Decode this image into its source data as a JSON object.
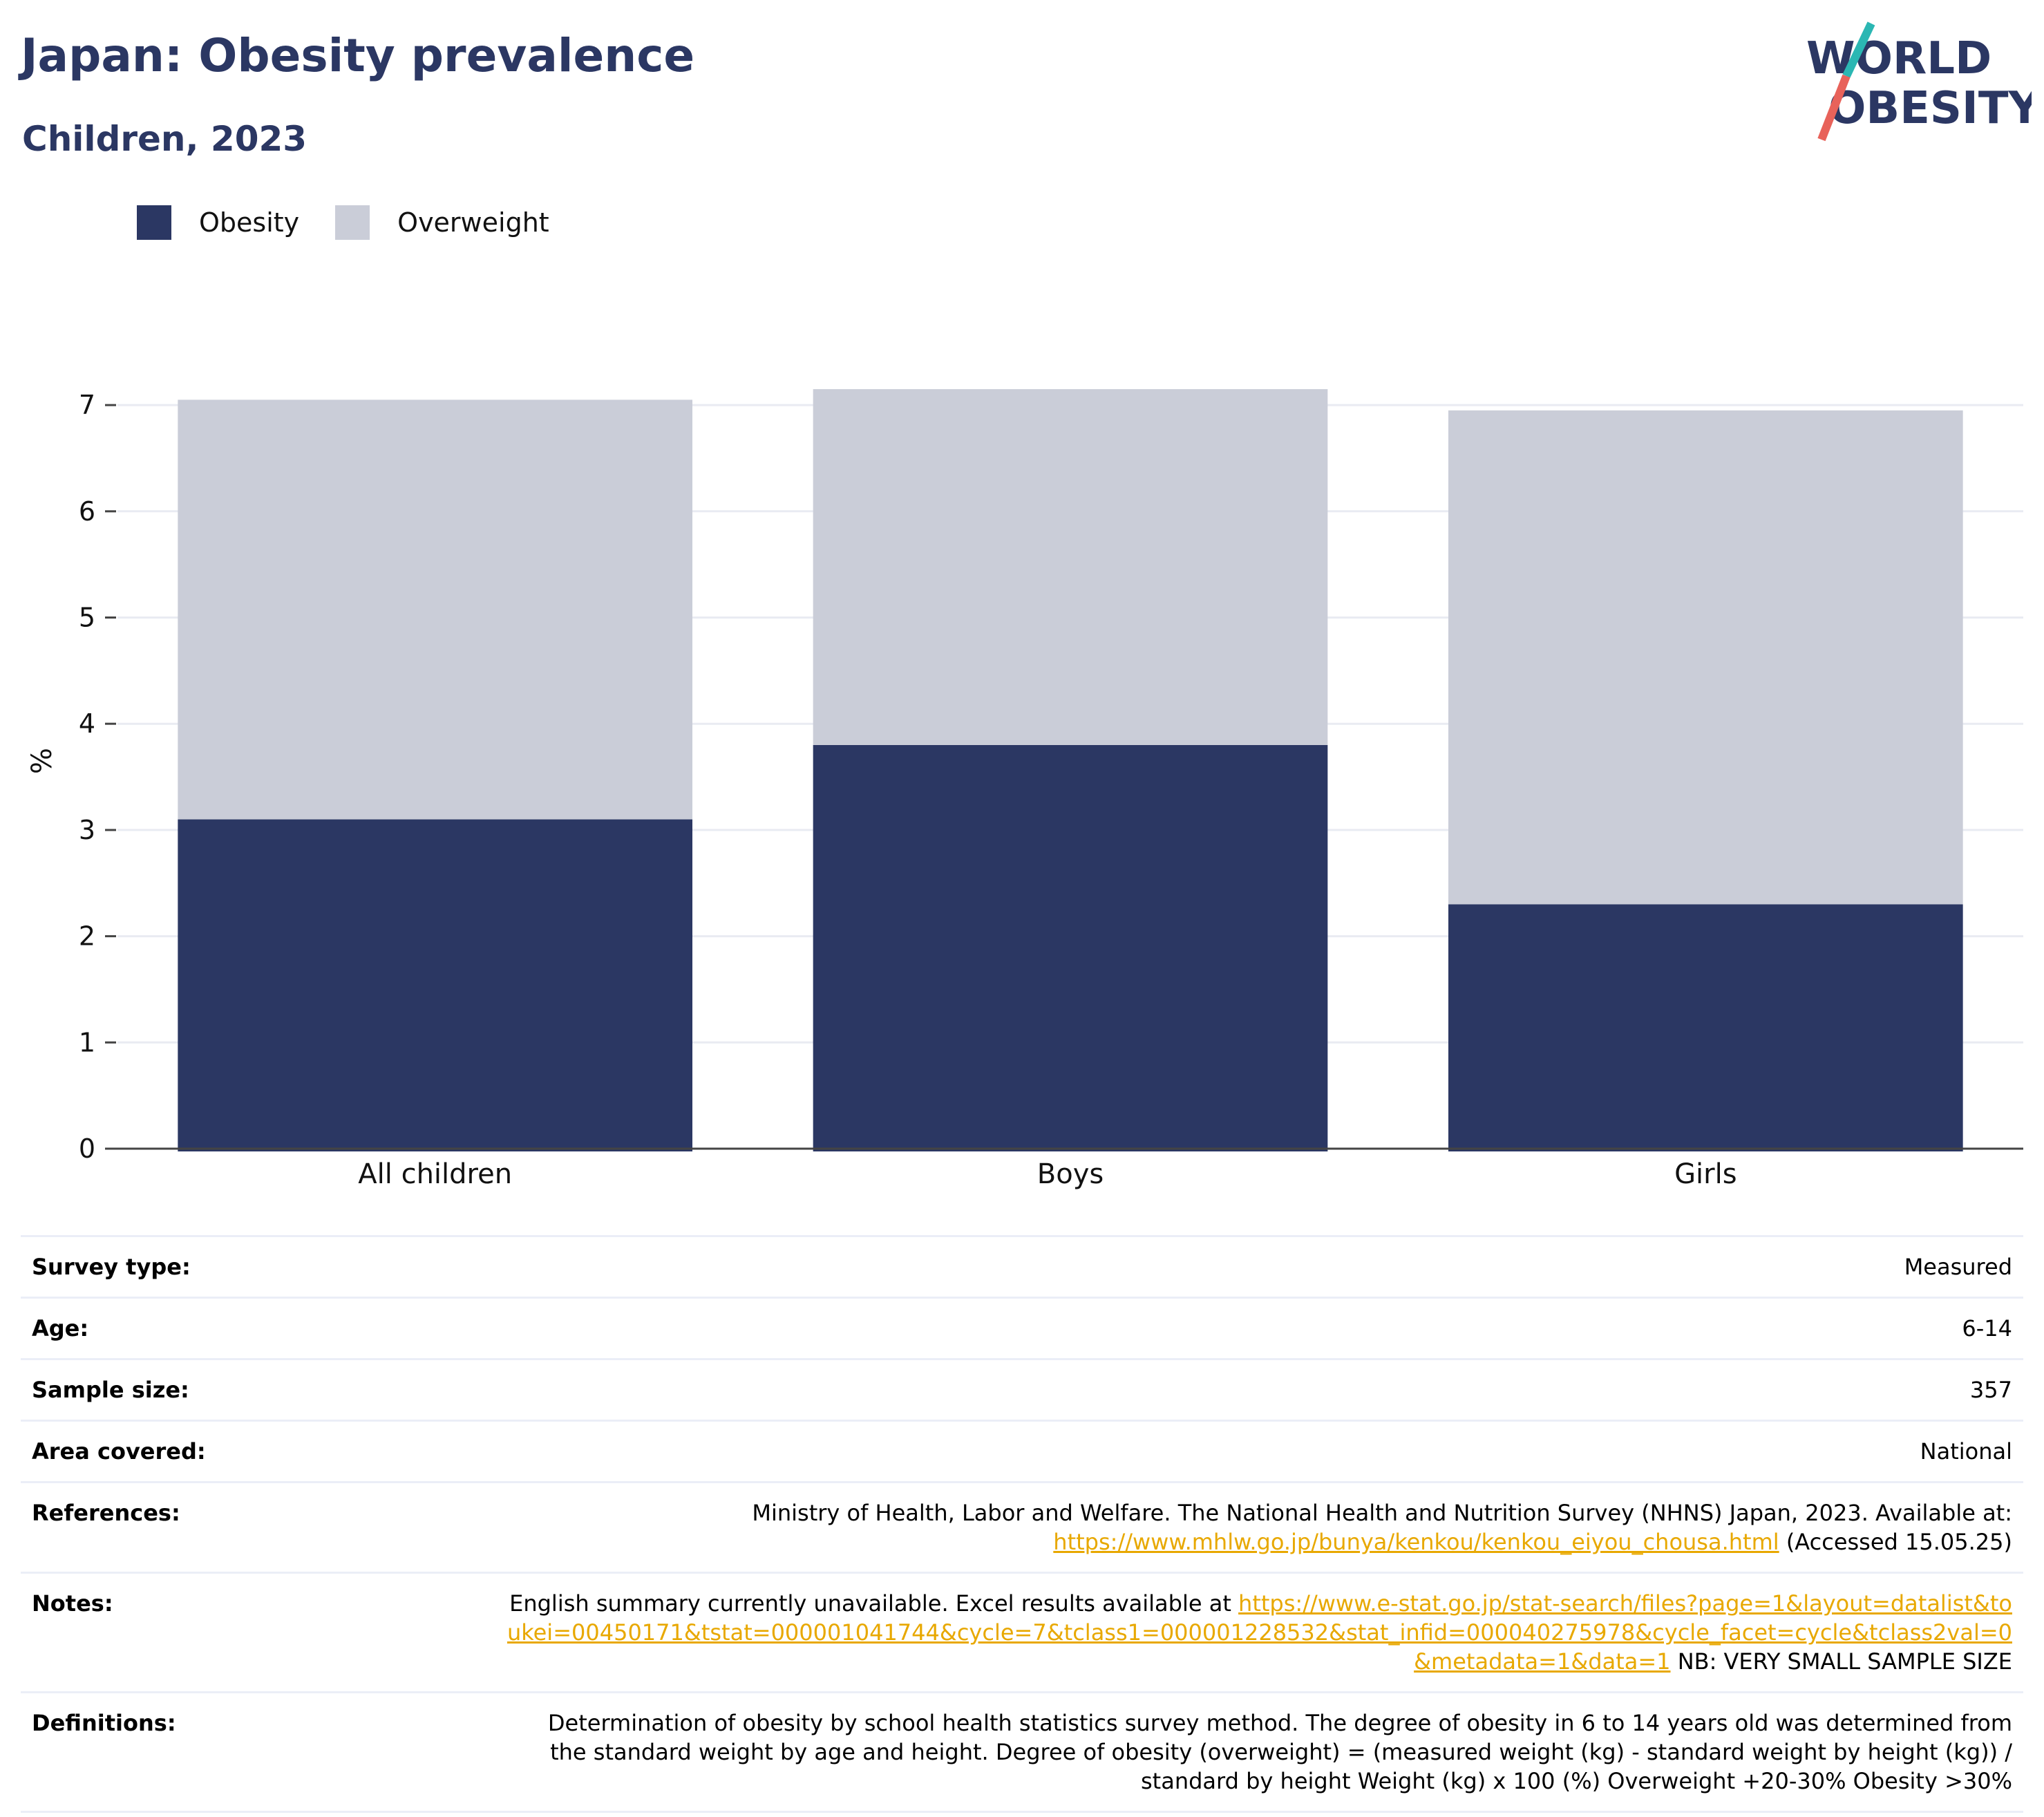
{
  "header": {
    "title": "Japan: Obesity prevalence",
    "subtitle": "Children, 2023"
  },
  "logo": {
    "line1": "WORLD",
    "line2": "OBESITY",
    "stroke_colors": [
      "#2bb7b3",
      "#e8625a"
    ]
  },
  "colors": {
    "obesity": "#2b3763",
    "overweight": "#cacdd8",
    "axis": "#444444",
    "grid": "#e9ebf2",
    "link": "#e8a800"
  },
  "legend": {
    "items": [
      {
        "label": "Obesity",
        "color": "#2b3763"
      },
      {
        "label": "Overweight",
        "color": "#cacdd8"
      }
    ]
  },
  "chart_data": {
    "type": "bar",
    "stacked": true,
    "categories": [
      "All children",
      "Boys",
      "Girls"
    ],
    "series": [
      {
        "name": "Obesity",
        "values": [
          3.1,
          3.8,
          2.3
        ],
        "color": "#2b3763"
      },
      {
        "name": "Overweight",
        "values": [
          3.95,
          3.35,
          4.65
        ],
        "color": "#cacdd8"
      }
    ],
    "title": "",
    "xlabel": "",
    "ylabel": "%",
    "ylim": [
      0,
      7.3
    ],
    "yticks": [
      0,
      1,
      2,
      3,
      4,
      5,
      6,
      7
    ],
    "grid": true,
    "legend_position": "top-left"
  },
  "info": {
    "survey_type": {
      "label": "Survey type:",
      "value": "Measured"
    },
    "age": {
      "label": "Age:",
      "value": "6-14"
    },
    "sample_size": {
      "label": "Sample size:",
      "value": "357"
    },
    "area": {
      "label": "Area covered:",
      "value": "National"
    },
    "references": {
      "label": "References:",
      "text": "Ministry of Health, Labor and Welfare. The National Health and Nutrition Survey (NHNS) Japan, 2023. Available at:",
      "link": "https://www.mhlw.go.jp/bunya/kenkou/kenkou_eiyou_chousa.html",
      "suffix": " (Accessed 15.05.25)"
    },
    "notes": {
      "label": "Notes:",
      "text": "English summary currently unavailable. Excel results available at ",
      "link": "https://www.e-stat.go.jp/stat-search/files?page=1&layout=datalist&toukei=00450171&tstat=000001041744&cycle=7&tclass1=000001228532&stat_infid=000040275978&cycle_facet=cycle&tclass2val=0&metadata=1&data=1",
      "suffix": " NB: VERY SMALL SAMPLE SIZE"
    },
    "definitions": {
      "label": "Definitions:",
      "text": "Determination of obesity by school health statistics survey method. The degree of obesity in 6 to 14 years old was determined from the standard weight by age and height. Degree of obesity (overweight) = (measured weight (kg) - standard weight by height (kg)) / standard by height Weight (kg) x 100 (%) Overweight +20-30% Obesity >30%"
    }
  }
}
